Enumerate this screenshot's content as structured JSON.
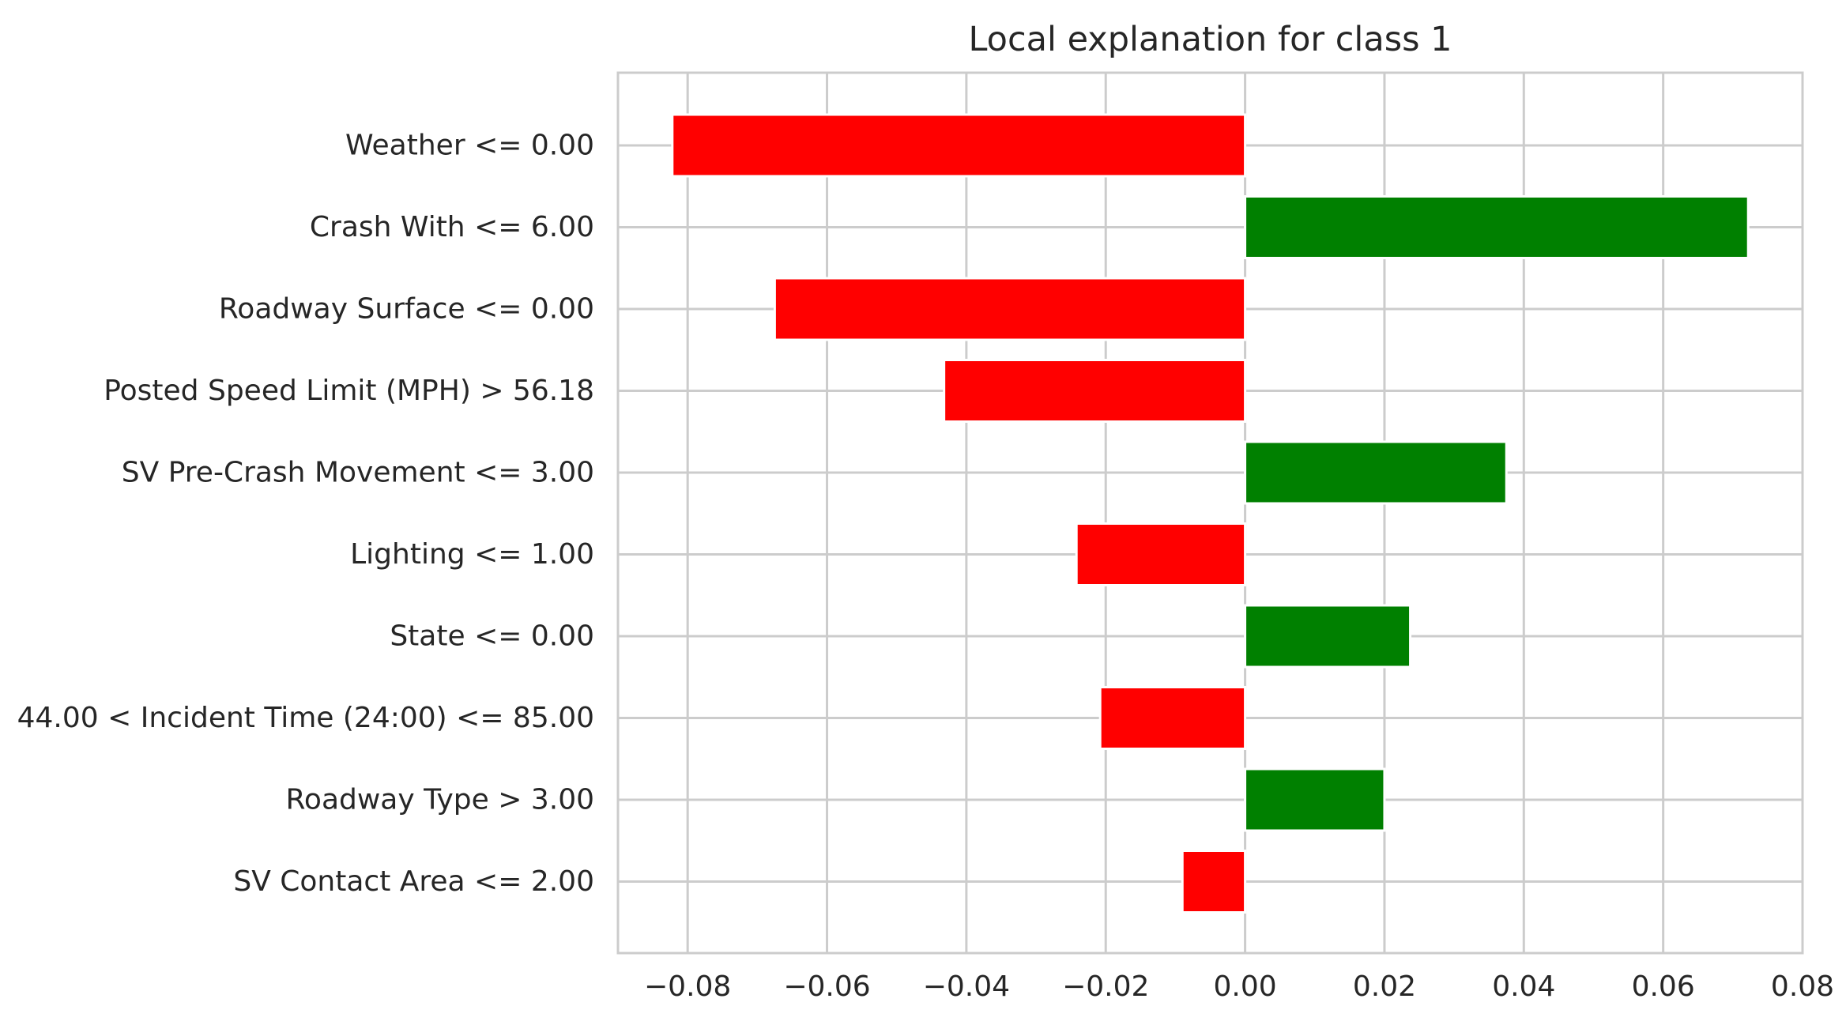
{
  "chart_data": {
    "type": "bar",
    "orientation": "horizontal",
    "title": "Local explanation for class 1",
    "xlabel": "",
    "ylabel": "",
    "xlim": [
      -0.09,
      0.08
    ],
    "grid": true,
    "xticks": [
      -0.08,
      -0.06,
      -0.04,
      -0.02,
      0.0,
      0.02,
      0.04,
      0.06,
      0.08
    ],
    "xtick_labels": [
      "−0.08",
      "−0.06",
      "−0.04",
      "−0.02",
      "0.00",
      "0.02",
      "0.04",
      "0.06",
      "0.08"
    ],
    "categories": [
      "Weather <= 0.00",
      "Crash With <= 6.00",
      "Roadway Surface <= 0.00",
      "Posted Speed Limit (MPH) > 56.18",
      "SV Pre-Crash Movement <= 3.00",
      "Lighting <= 1.00",
      "State <= 0.00",
      "44.00 < Incident Time (24:00) <= 85.00",
      "Roadway Type > 3.00",
      "SV Contact Area <= 2.00"
    ],
    "values": [
      -0.0822,
      0.0722,
      -0.0675,
      -0.0432,
      0.0375,
      -0.0242,
      0.0237,
      -0.0208,
      0.02,
      -0.009
    ],
    "colors": {
      "positive": "#008000",
      "negative": "#ff0000"
    }
  }
}
